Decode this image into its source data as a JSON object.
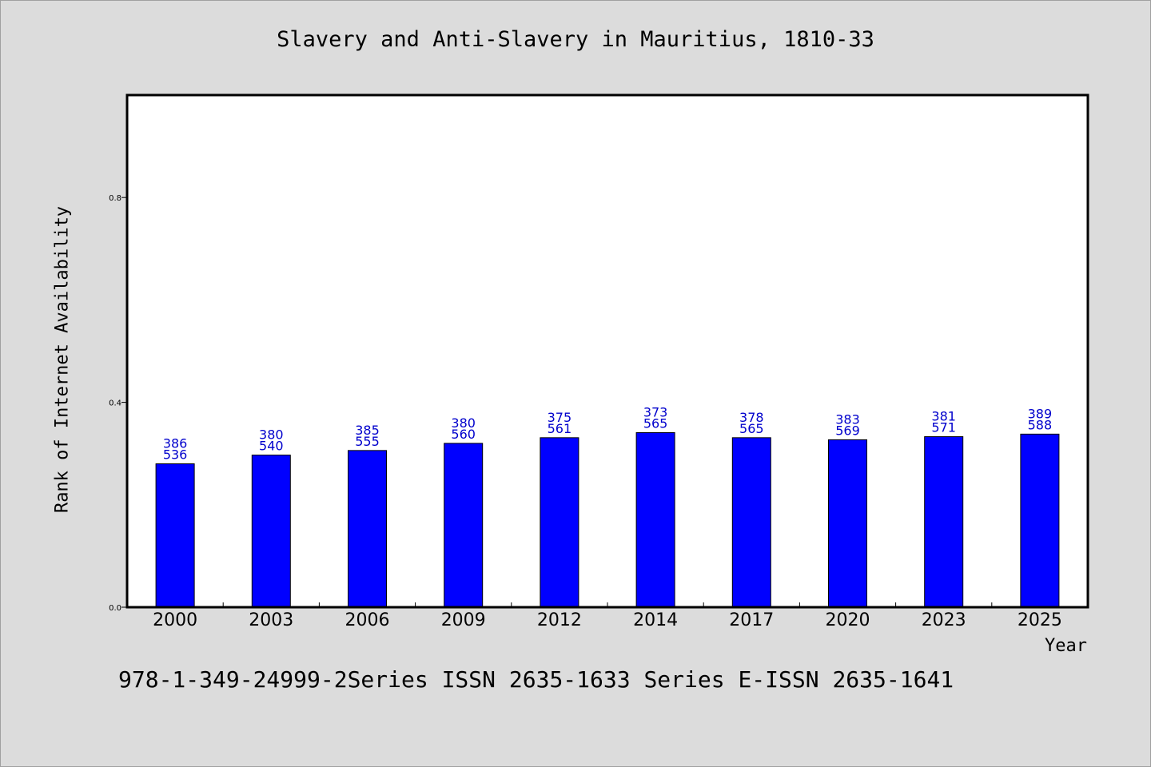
{
  "chart_data": {
    "type": "bar",
    "title": "Slavery and Anti-Slavery in Mauritius, 1810-33",
    "xlabel": "Year",
    "ylabel": "Rank of Internet Availability",
    "categories": [
      "2000",
      "2003",
      "2006",
      "2009",
      "2012",
      "2014",
      "2017",
      "2020",
      "2023",
      "2025"
    ],
    "values": [
      0.28,
      0.297,
      0.306,
      0.32,
      0.331,
      0.341,
      0.331,
      0.327,
      0.333,
      0.338
    ],
    "data_labels": [
      [
        "386",
        "536"
      ],
      [
        "380",
        "540"
      ],
      [
        "385",
        "555"
      ],
      [
        "380",
        "560"
      ],
      [
        "375",
        "561"
      ],
      [
        "373",
        "565"
      ],
      [
        "378",
        "565"
      ],
      [
        "383",
        "569"
      ],
      [
        "381",
        "571"
      ],
      [
        "389",
        "588"
      ]
    ],
    "ylim": [
      0,
      1.0
    ],
    "yticks": [
      0.0,
      0.4,
      0.8
    ],
    "ytick_labels": [
      "0.0",
      "0.4",
      "0.8"
    ],
    "grid": false,
    "legend": "none",
    "bar_color": "#0000ff",
    "label_color": "#0000cc"
  },
  "footer": {
    "text": "978-1-349-24999-2Series ISSN 2635-1633 Series E-ISSN 2635-1641"
  },
  "colors": {
    "background": "#dcdcdc",
    "plot_background": "#ffffff"
  }
}
